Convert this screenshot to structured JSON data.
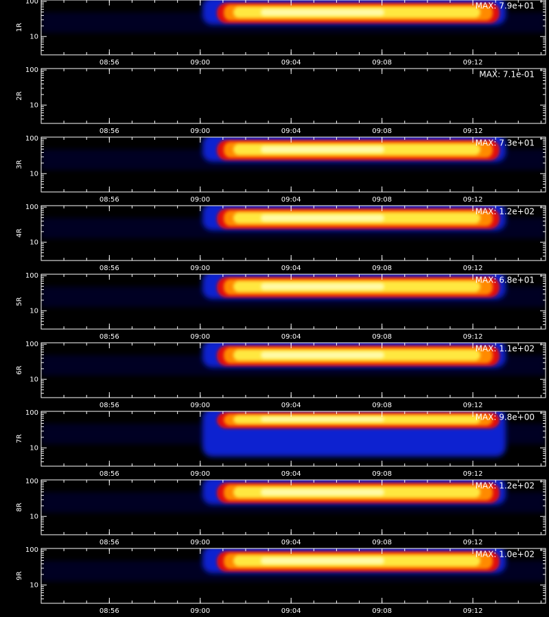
{
  "chart_data": [
    {
      "type": "spectrogram",
      "ylabel": "1R",
      "annotation": "MAX: 7.9e+01",
      "log_y": true,
      "xlim": [
        533,
        555.2
      ],
      "ylim": [
        3,
        110
      ],
      "yticks": [
        10,
        100
      ],
      "xticks": [
        {
          "value": 536,
          "label": "08:56"
        },
        {
          "value": 540,
          "label": "09:00"
        },
        {
          "value": 544,
          "label": "09:04"
        },
        {
          "value": 548,
          "label": "09:08"
        },
        {
          "value": 552,
          "label": "09:12"
        }
      ]
    },
    {
      "type": "spectrogram",
      "ylabel": "2R",
      "annotation": "MAX: 7.1e-01",
      "log_y": true,
      "xlim": [
        533,
        555.2
      ],
      "ylim": [
        3,
        110
      ],
      "yticks": [
        10,
        100
      ],
      "xticks": [
        {
          "value": 536,
          "label": "08:56"
        },
        {
          "value": 540,
          "label": "09:00"
        },
        {
          "value": 544,
          "label": "09:04"
        },
        {
          "value": 548,
          "label": "09:08"
        },
        {
          "value": 552,
          "label": "09:12"
        }
      ]
    },
    {
      "type": "spectrogram",
      "ylabel": "3R",
      "annotation": "MAX: 7.3e+01",
      "log_y": true,
      "xlim": [
        533,
        555.2
      ],
      "ylim": [
        3,
        110
      ],
      "yticks": [
        10,
        100
      ],
      "xticks": [
        {
          "value": 536,
          "label": "08:56"
        },
        {
          "value": 540,
          "label": "09:00"
        },
        {
          "value": 544,
          "label": "09:04"
        },
        {
          "value": 548,
          "label": "09:08"
        },
        {
          "value": 552,
          "label": "09:12"
        }
      ]
    },
    {
      "type": "spectrogram",
      "ylabel": "4R",
      "annotation": "MAX: 1.2e+02",
      "log_y": true,
      "xlim": [
        533,
        555.2
      ],
      "ylim": [
        3,
        110
      ],
      "yticks": [
        10,
        100
      ],
      "xticks": [
        {
          "value": 536,
          "label": "08:56"
        },
        {
          "value": 540,
          "label": "09:00"
        },
        {
          "value": 544,
          "label": "09:04"
        },
        {
          "value": 548,
          "label": "09:08"
        },
        {
          "value": 552,
          "label": "09:12"
        }
      ]
    },
    {
      "type": "spectrogram",
      "ylabel": "5R",
      "annotation": "MAX: 6.8e+01",
      "log_y": true,
      "xlim": [
        533,
        555.2
      ],
      "ylim": [
        3,
        110
      ],
      "yticks": [
        10,
        100
      ],
      "xticks": [
        {
          "value": 536,
          "label": "08:56"
        },
        {
          "value": 540,
          "label": "09:00"
        },
        {
          "value": 544,
          "label": "09:04"
        },
        {
          "value": 548,
          "label": "09:08"
        },
        {
          "value": 552,
          "label": "09:12"
        }
      ]
    },
    {
      "type": "spectrogram",
      "ylabel": "6R",
      "annotation": "MAX: 1.1e+02",
      "log_y": true,
      "xlim": [
        533,
        555.2
      ],
      "ylim": [
        3,
        110
      ],
      "yticks": [
        10,
        100
      ],
      "xticks": [
        {
          "value": 536,
          "label": "08:56"
        },
        {
          "value": 540,
          "label": "09:00"
        },
        {
          "value": 544,
          "label": "09:04"
        },
        {
          "value": 548,
          "label": "09:08"
        },
        {
          "value": 552,
          "label": "09:12"
        }
      ]
    },
    {
      "type": "spectrogram",
      "ylabel": "7R",
      "annotation": "MAX: 9.8e+00",
      "log_y": true,
      "xlim": [
        533,
        555.2
      ],
      "ylim": [
        3,
        110
      ],
      "yticks": [
        10,
        100
      ],
      "xticks": [
        {
          "value": 536,
          "label": "08:56"
        },
        {
          "value": 540,
          "label": "09:00"
        },
        {
          "value": 544,
          "label": "09:04"
        },
        {
          "value": 548,
          "label": "09:08"
        },
        {
          "value": 552,
          "label": "09:12"
        }
      ]
    },
    {
      "type": "spectrogram",
      "ylabel": "8R",
      "annotation": "MAX: 1.2e+02",
      "log_y": true,
      "xlim": [
        533,
        555.2
      ],
      "ylim": [
        3,
        110
      ],
      "yticks": [
        10,
        100
      ],
      "xticks": [
        {
          "value": 536,
          "label": "08:56"
        },
        {
          "value": 540,
          "label": "09:00"
        },
        {
          "value": 544,
          "label": "09:04"
        },
        {
          "value": 548,
          "label": "09:08"
        },
        {
          "value": 552,
          "label": "09:12"
        }
      ]
    },
    {
      "type": "spectrogram",
      "ylabel": "9R",
      "annotation": "MAX: 1.0e+02",
      "log_y": true,
      "xlim": [
        533,
        555.2
      ],
      "ylim": [
        3,
        110
      ],
      "yticks": [
        10,
        100
      ],
      "xticks": [
        {
          "value": 536,
          "label": "08:56"
        },
        {
          "value": 540,
          "label": "09:00"
        },
        {
          "value": 544,
          "label": "09:04"
        },
        {
          "value": 548,
          "label": "09:08"
        },
        {
          "value": 552,
          "label": "09:12"
        }
      ]
    }
  ]
}
